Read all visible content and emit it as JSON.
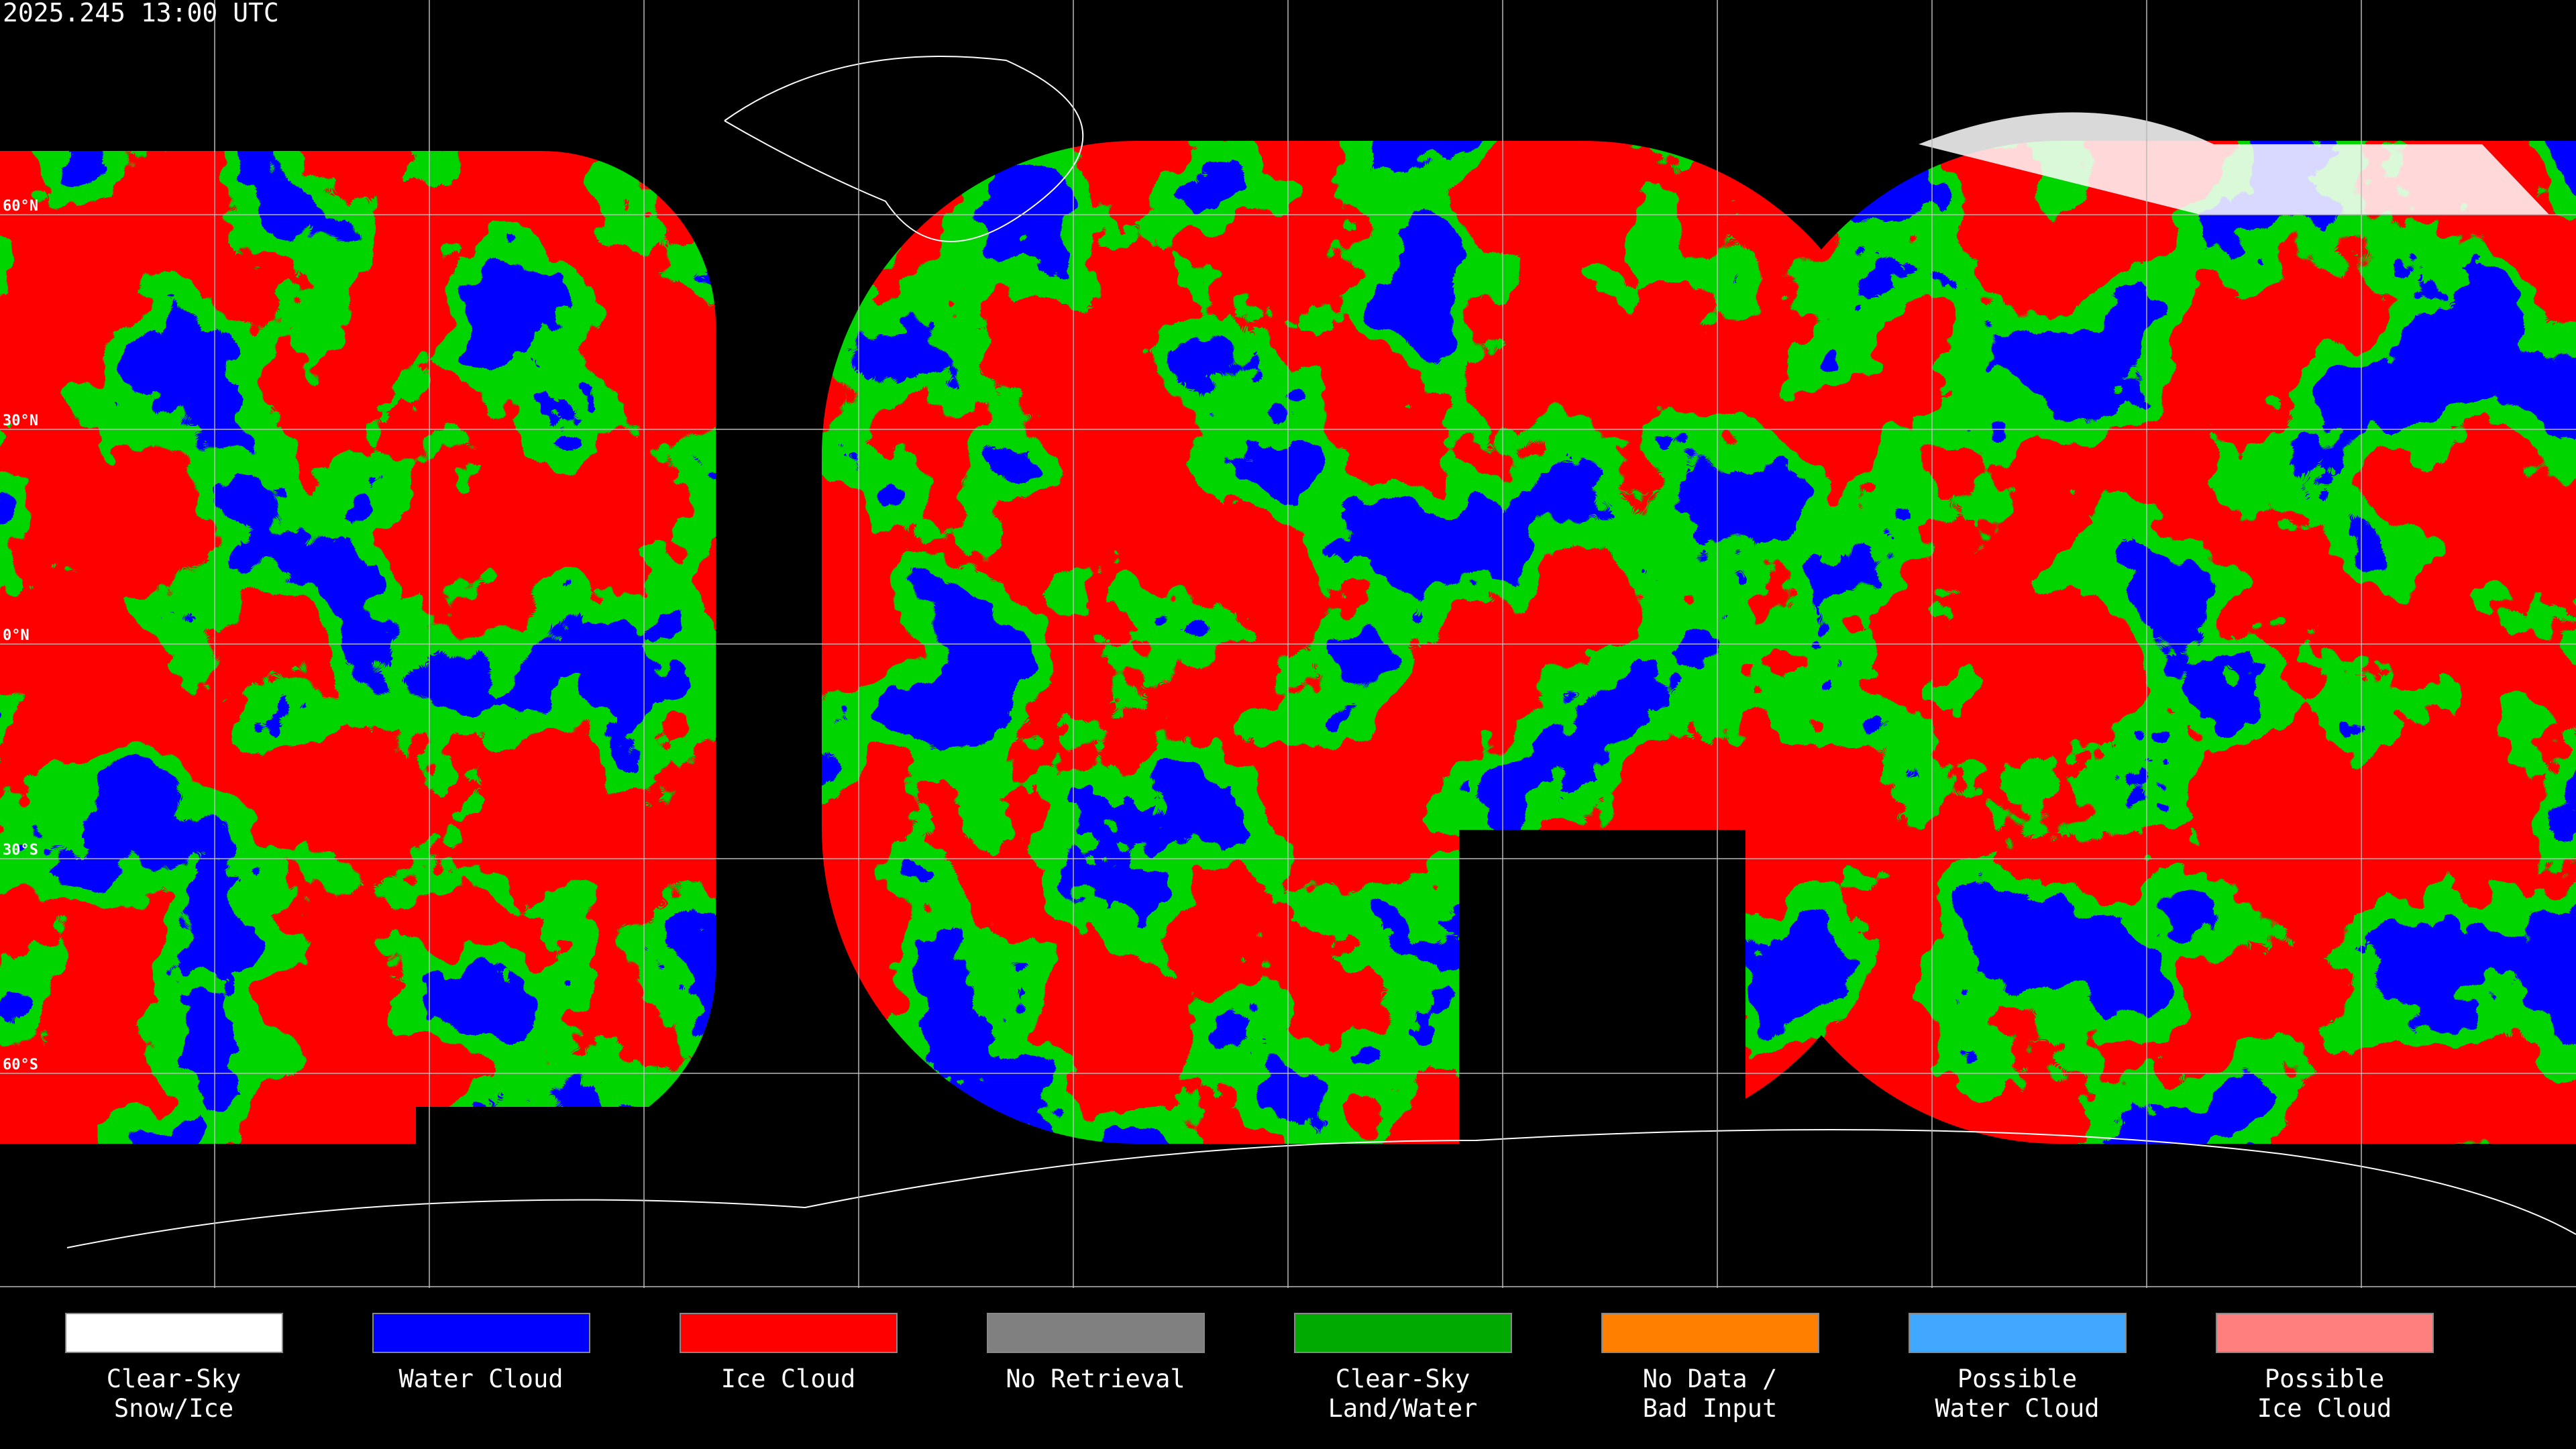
{
  "header": {
    "timestamp": "2025.245 13:00 UTC"
  },
  "map": {
    "lat_labels": [
      "60°N",
      "30°N",
      "0°N",
      "30°S",
      "60°S"
    ]
  },
  "legend": {
    "items": [
      {
        "lines": [
          "Clear-Sky",
          "Snow/Ice"
        ],
        "color": "#ffffff"
      },
      {
        "lines": [
          "Water Cloud"
        ],
        "color": "#0000ff"
      },
      {
        "lines": [
          "Ice Cloud"
        ],
        "color": "#ff0000"
      },
      {
        "lines": [
          "No Retrieval"
        ],
        "color": "#808080"
      },
      {
        "lines": [
          "Clear-Sky",
          "Land/Water"
        ],
        "color": "#00aa00"
      },
      {
        "lines": [
          "No Data /",
          "Bad Input"
        ],
        "color": "#ff8000"
      },
      {
        "lines": [
          "Possible",
          "Water Cloud"
        ],
        "color": "#40a8ff"
      },
      {
        "lines": [
          "Possible",
          "Ice Cloud"
        ],
        "color": "#ff7f7f"
      }
    ]
  }
}
